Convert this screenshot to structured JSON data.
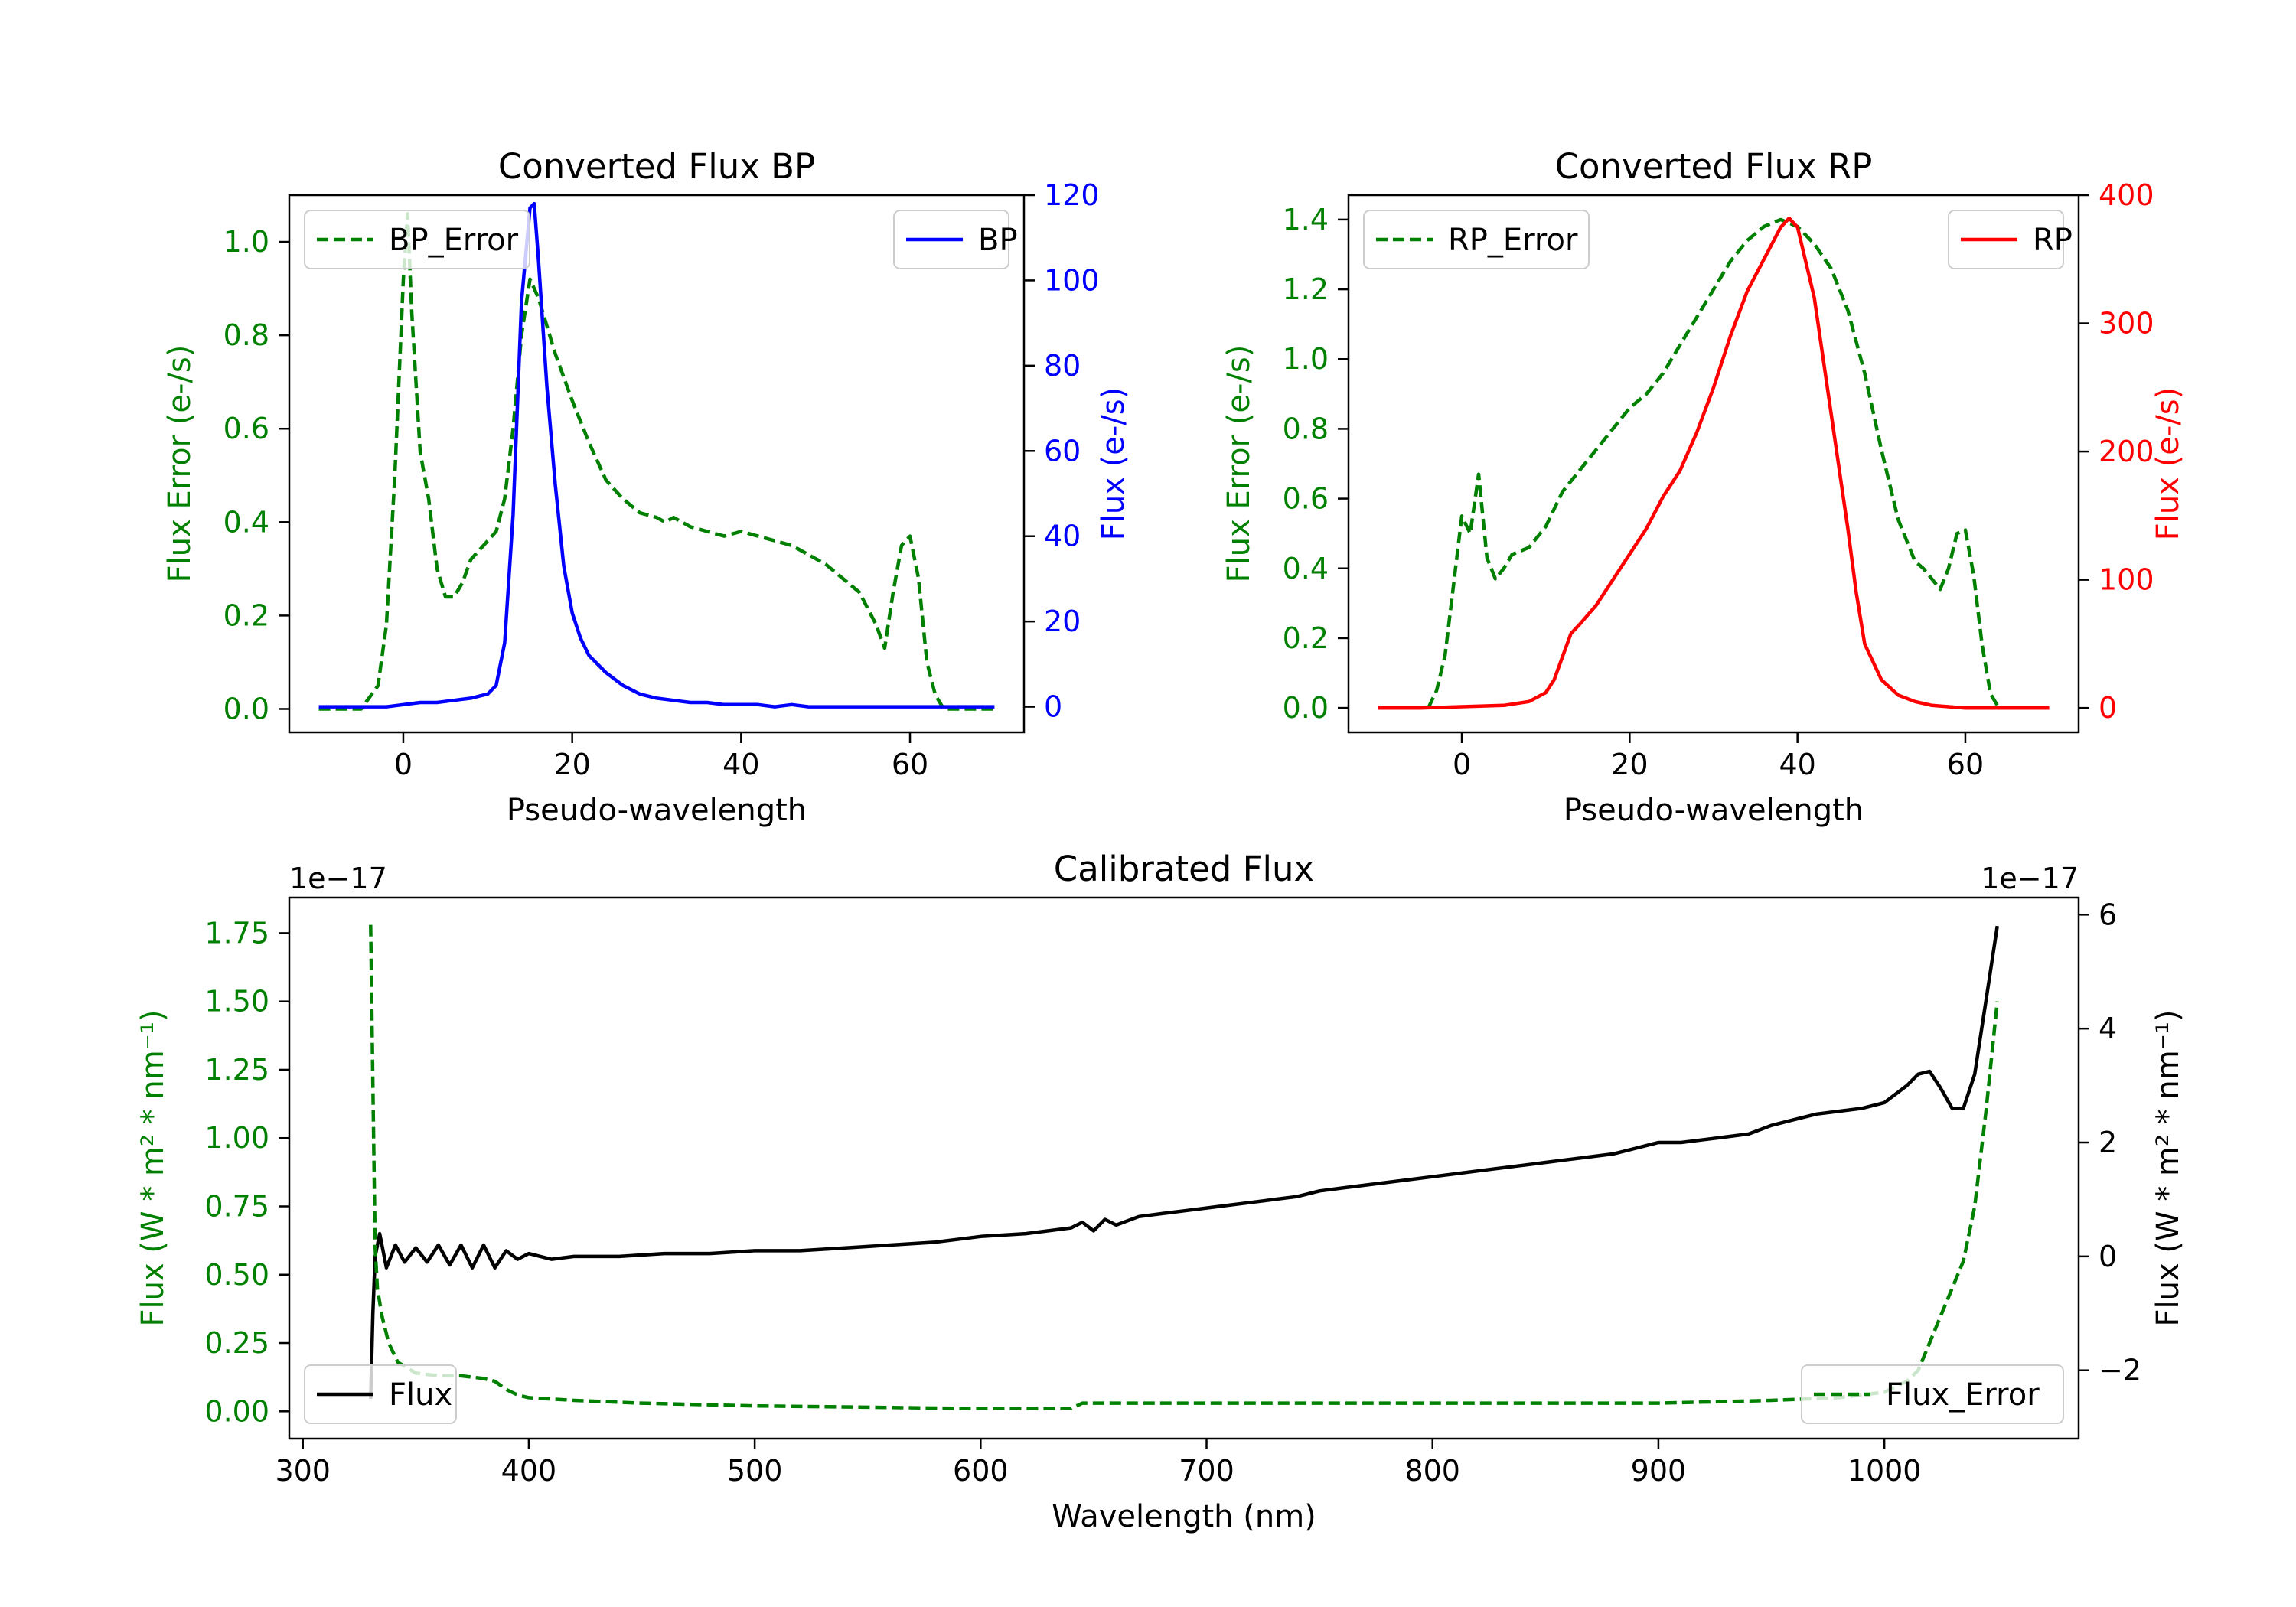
{
  "chart_data": [
    {
      "type": "line",
      "title": "Converted Flux BP",
      "xlabel": "Pseudo-wavelength",
      "ylabel_left": "Flux Error (e-/s)",
      "ylabel_right": "Flux (e-/s)",
      "xlim": [
        -13.5,
        73.5
      ],
      "ylim_left": [
        -0.05,
        1.1
      ],
      "ylim_right": [
        -6,
        120
      ],
      "xticks": [
        0,
        20,
        40,
        60
      ],
      "yticks_left": [
        0.0,
        0.2,
        0.4,
        0.6,
        0.8,
        1.0
      ],
      "yticks_right": [
        0,
        20,
        40,
        60,
        80,
        100,
        120
      ],
      "legend_left": {
        "label": "BP_Error",
        "position": "top-left"
      },
      "legend_right": {
        "label": "BP",
        "position": "top-right"
      },
      "series": [
        {
          "name": "BP_Error",
          "axis": "left",
          "style": "dashed",
          "color": "#008000",
          "x": [
            -10,
            -5,
            -3,
            -2,
            -1,
            0,
            0.5,
            1,
            2,
            3,
            4,
            5,
            6,
            7,
            8,
            9,
            10,
            11,
            12,
            13,
            14,
            15,
            16,
            17,
            18,
            20,
            22,
            24,
            26,
            28,
            30,
            31,
            32,
            34,
            36,
            38,
            40,
            42,
            44,
            46,
            48,
            50,
            52,
            54,
            56,
            57,
            58,
            59,
            60,
            61,
            62,
            63,
            64,
            65,
            67,
            70
          ],
          "y": [
            0.0,
            0.0,
            0.05,
            0.18,
            0.5,
            0.92,
            1.06,
            0.85,
            0.55,
            0.45,
            0.3,
            0.24,
            0.24,
            0.27,
            0.32,
            0.34,
            0.36,
            0.38,
            0.45,
            0.6,
            0.8,
            0.92,
            0.88,
            0.82,
            0.76,
            0.66,
            0.57,
            0.49,
            0.45,
            0.42,
            0.41,
            0.4,
            0.41,
            0.39,
            0.38,
            0.37,
            0.38,
            0.37,
            0.36,
            0.35,
            0.33,
            0.31,
            0.28,
            0.25,
            0.18,
            0.13,
            0.25,
            0.35,
            0.37,
            0.28,
            0.1,
            0.03,
            0.0,
            0.0,
            0.0,
            0.0
          ]
        },
        {
          "name": "BP",
          "axis": "right",
          "style": "solid",
          "color": "#0000ff",
          "x": [
            -10,
            -5,
            -2,
            0,
            2,
            4,
            6,
            8,
            10,
            11,
            12,
            13,
            14,
            15,
            15.5,
            16,
            17,
            18,
            19,
            20,
            21,
            22,
            24,
            26,
            28,
            30,
            32,
            34,
            36,
            38,
            40,
            42,
            44,
            46,
            48,
            50,
            52,
            54,
            56,
            58,
            60,
            62,
            64,
            66,
            70
          ],
          "y": [
            0,
            0,
            0,
            0.5,
            1,
            1,
            1.5,
            2,
            3,
            5,
            15,
            45,
            95,
            117,
            118,
            105,
            75,
            52,
            33,
            22,
            16,
            12,
            8,
            5,
            3,
            2,
            1.5,
            1,
            1,
            0.5,
            0.5,
            0.5,
            0,
            0.5,
            0,
            0,
            0,
            0,
            0,
            0,
            0,
            0,
            0,
            0,
            0
          ]
        }
      ]
    },
    {
      "type": "line",
      "title": "Converted Flux RP",
      "xlabel": "Pseudo-wavelength",
      "ylabel_left": "Flux Error (e-/s)",
      "ylabel_right": "Flux (e-/s)",
      "xlim": [
        -13.5,
        73.5
      ],
      "ylim_left": [
        -0.07,
        1.47
      ],
      "ylim_right": [
        -19,
        400
      ],
      "xticks": [
        0,
        20,
        40,
        60
      ],
      "yticks_left": [
        0.0,
        0.2,
        0.4,
        0.6,
        0.8,
        1.0,
        1.2,
        1.4
      ],
      "yticks_right": [
        0,
        100,
        200,
        300,
        400
      ],
      "legend_left": {
        "label": "RP_Error",
        "position": "top-left"
      },
      "legend_right": {
        "label": "RP",
        "position": "top-right"
      },
      "series": [
        {
          "name": "RP_Error",
          "axis": "left",
          "style": "dashed",
          "color": "#008000",
          "x": [
            -4,
            -3,
            -2,
            -1,
            0,
            1,
            2,
            3,
            4,
            5,
            6,
            8,
            10,
            12,
            14,
            16,
            18,
            20,
            22,
            24,
            26,
            28,
            30,
            32,
            34,
            36,
            38,
            39,
            40,
            42,
            44,
            46,
            48,
            50,
            52,
            54,
            55,
            56,
            57,
            58,
            59,
            60,
            61,
            62,
            63,
            64
          ],
          "y": [
            0.0,
            0.05,
            0.15,
            0.35,
            0.55,
            0.5,
            0.67,
            0.43,
            0.37,
            0.4,
            0.44,
            0.46,
            0.52,
            0.62,
            0.68,
            0.74,
            0.8,
            0.86,
            0.9,
            0.96,
            1.04,
            1.12,
            1.2,
            1.28,
            1.34,
            1.38,
            1.4,
            1.39,
            1.38,
            1.33,
            1.26,
            1.14,
            0.96,
            0.74,
            0.54,
            0.42,
            0.4,
            0.37,
            0.34,
            0.4,
            0.5,
            0.51,
            0.38,
            0.18,
            0.04,
            0.0
          ]
        },
        {
          "name": "RP",
          "axis": "right",
          "style": "solid",
          "color": "#ff0000",
          "x": [
            -10,
            -5,
            0,
            5,
            8,
            10,
            11,
            12,
            13,
            14,
            16,
            18,
            20,
            22,
            24,
            26,
            28,
            30,
            32,
            34,
            36,
            38,
            39,
            40,
            42,
            44,
            46,
            47,
            48,
            50,
            52,
            54,
            56,
            58,
            60,
            62,
            65,
            70
          ],
          "y": [
            0,
            0,
            1,
            2,
            5,
            12,
            22,
            40,
            58,
            65,
            80,
            100,
            120,
            140,
            165,
            185,
            215,
            250,
            290,
            325,
            350,
            375,
            382,
            375,
            320,
            230,
            140,
            90,
            50,
            22,
            10,
            5,
            2,
            1,
            0,
            0,
            0,
            0
          ]
        }
      ]
    },
    {
      "type": "line",
      "title": "Calibrated Flux",
      "xlabel": "Wavelength (nm)",
      "ylabel_left": "Flux (W * m² * nm⁻¹)",
      "ylabel_right": "Flux (W * m² * nm⁻¹)",
      "offset_left": "1e−17",
      "offset_right": "1e−17",
      "xlim": [
        294,
        1086
      ],
      "ylim_left": [
        -0.1,
        1.88
      ],
      "ylim_right": [
        -3.2,
        6.3
      ],
      "xticks": [
        300,
        400,
        500,
        600,
        700,
        800,
        900,
        1000
      ],
      "yticks_left": [
        0.0,
        0.25,
        0.5,
        0.75,
        1.0,
        1.25,
        1.5,
        1.75
      ],
      "yticks_right": [
        -2,
        0,
        2,
        4,
        6
      ],
      "legend_left": {
        "label": "Flux",
        "position": "lower-left"
      },
      "legend_right": {
        "label": "Flux_Error",
        "position": "lower-right"
      },
      "series": [
        {
          "name": "Flux",
          "axis": "right",
          "style": "solid",
          "color": "#000000",
          "x": [
            330,
            331,
            332,
            334,
            337,
            341,
            345,
            350,
            355,
            360,
            365,
            370,
            375,
            380,
            385,
            390,
            395,
            400,
            410,
            420,
            440,
            460,
            480,
            500,
            520,
            540,
            560,
            580,
            600,
            620,
            640,
            645,
            650,
            655,
            660,
            670,
            680,
            690,
            700,
            710,
            720,
            730,
            740,
            750,
            760,
            780,
            800,
            820,
            840,
            860,
            870,
            880,
            890,
            900,
            910,
            920,
            930,
            940,
            950,
            960,
            970,
            980,
            990,
            1000,
            1010,
            1015,
            1020,
            1025,
            1030,
            1035,
            1040,
            1045,
            1050
          ],
          "y": [
            -2.5,
            -1,
            0.0,
            0.4,
            -0.2,
            0.2,
            -0.1,
            0.15,
            -0.1,
            0.2,
            -0.15,
            0.2,
            -0.2,
            0.2,
            -0.2,
            0.1,
            -0.05,
            0.05,
            -0.05,
            0.0,
            0.0,
            0.05,
            0.05,
            0.1,
            0.1,
            0.15,
            0.2,
            0.25,
            0.35,
            0.4,
            0.5,
            0.6,
            0.45,
            0.65,
            0.55,
            0.7,
            0.75,
            0.8,
            0.85,
            0.9,
            0.95,
            1.0,
            1.05,
            1.15,
            1.2,
            1.3,
            1.4,
            1.5,
            1.6,
            1.7,
            1.75,
            1.8,
            1.9,
            2.0,
            2.0,
            2.05,
            2.1,
            2.15,
            2.3,
            2.4,
            2.5,
            2.55,
            2.6,
            2.7,
            3.0,
            3.2,
            3.25,
            2.95,
            2.6,
            2.6,
            3.2,
            4.5,
            5.8
          ]
        },
        {
          "name": "Flux_Error",
          "axis": "left",
          "style": "dashed",
          "color": "#008000",
          "x": [
            330,
            331,
            332,
            333,
            335,
            338,
            342,
            350,
            360,
            370,
            380,
            385,
            390,
            395,
            400,
            420,
            450,
            500,
            550,
            600,
            640,
            645,
            650,
            700,
            750,
            800,
            850,
            900,
            950,
            980,
            1000,
            1010,
            1015,
            1020,
            1025,
            1030,
            1035,
            1040,
            1045,
            1050
          ],
          "y": [
            1.78,
            1.2,
            0.6,
            0.45,
            0.35,
            0.25,
            0.18,
            0.14,
            0.13,
            0.13,
            0.12,
            0.11,
            0.08,
            0.06,
            0.05,
            0.04,
            0.03,
            0.02,
            0.015,
            0.01,
            0.01,
            0.03,
            0.03,
            0.03,
            0.03,
            0.03,
            0.03,
            0.03,
            0.04,
            0.05,
            0.07,
            0.11,
            0.15,
            0.25,
            0.35,
            0.45,
            0.55,
            0.75,
            1.1,
            1.5
          ]
        }
      ]
    }
  ]
}
